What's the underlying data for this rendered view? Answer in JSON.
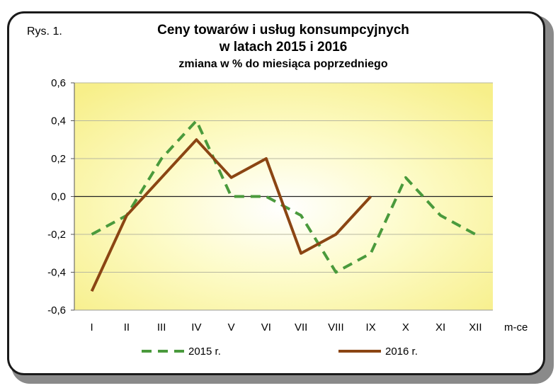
{
  "figure_label": "Rys. 1.",
  "chart_data": {
    "type": "line",
    "title": "Ceny towarów i usług konsumpcyjnych",
    "title_line2": "w latach 2015 i 2016",
    "subtitle": "zmiana w % do miesiąca poprzedniego",
    "xlabel": "m-ce",
    "ylabel": "",
    "categories": [
      "I",
      "II",
      "III",
      "IV",
      "V",
      "VI",
      "VII",
      "VIII",
      "IX",
      "X",
      "XI",
      "XII"
    ],
    "ylim": [
      -0.6,
      0.6
    ],
    "yticks": [
      "0,6",
      "0,4",
      "0,2",
      "0,0",
      "-0,2",
      "-0,4",
      "-0,6"
    ],
    "ytick_values": [
      0.6,
      0.4,
      0.2,
      0.0,
      -0.2,
      -0.4,
      -0.6
    ],
    "grid": true,
    "legend_position": "bottom",
    "series": [
      {
        "name": "2015 r.",
        "color": "#4a9a3c",
        "style": "dashed",
        "values": [
          -0.2,
          -0.1,
          0.2,
          0.4,
          0.0,
          0.0,
          -0.1,
          -0.4,
          -0.3,
          0.1,
          -0.1,
          -0.2
        ]
      },
      {
        "name": "2016 r.",
        "color": "#8b4513",
        "style": "solid",
        "values": [
          -0.5,
          -0.1,
          0.1,
          0.3,
          0.1,
          0.2,
          -0.3,
          -0.2,
          0.0,
          null,
          null,
          null
        ]
      }
    ]
  }
}
